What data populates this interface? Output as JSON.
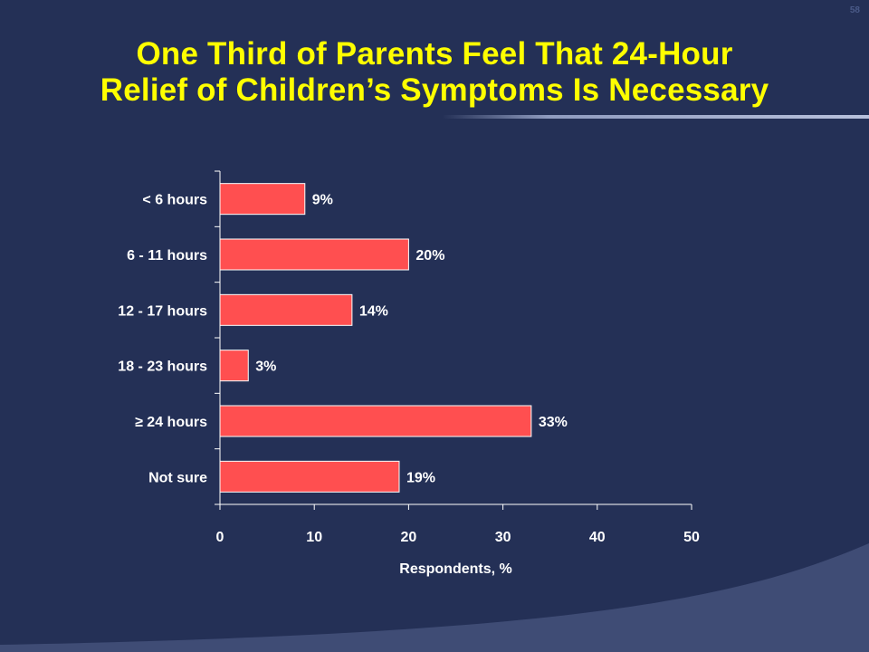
{
  "slide": {
    "number": "58",
    "title_lines": [
      "One Third of Parents Feel That 24-Hour",
      "Relief of Children’s Symptoms Is Necessary"
    ]
  },
  "colors": {
    "background": "#243056",
    "title": "#ffff00",
    "bar": "#ff4f50",
    "bar_edge": "#ffffff",
    "text": "#ffffff",
    "accent_swoosh": "#3f4c75"
  },
  "chart_data": {
    "type": "bar",
    "orientation": "horizontal",
    "categories": [
      "< 6 hours",
      "6 - 11 hours",
      "12 - 17 hours",
      "18 - 23 hours",
      "≥ 24 hours",
      "Not sure"
    ],
    "values": [
      9,
      20,
      14,
      3,
      33,
      19
    ],
    "data_labels": [
      "9%",
      "20%",
      "14%",
      "3%",
      "33%",
      "19%"
    ],
    "xlabel": "Respondents, %",
    "ylabel": "",
    "xlim": [
      0,
      50
    ],
    "xticks": [
      0,
      10,
      20,
      30,
      40,
      50
    ],
    "grid": false,
    "legend": "none"
  }
}
